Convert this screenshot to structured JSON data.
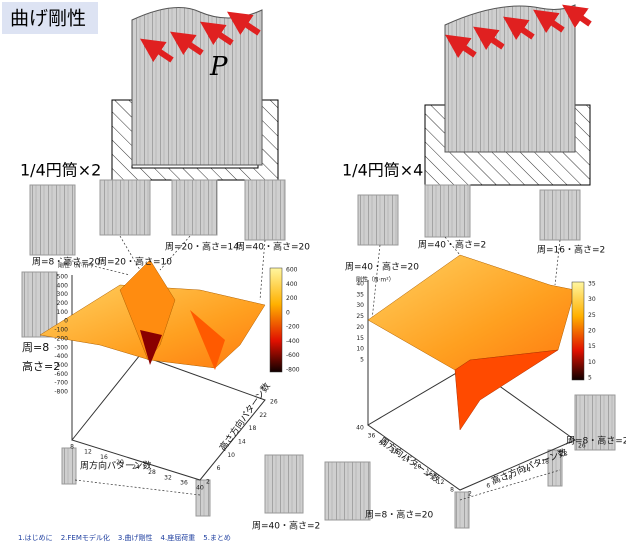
{
  "header": {
    "title": "曲げ剛性"
  },
  "left": {
    "label": "1/4円筒×2",
    "load": "P",
    "notes": [
      "周=8・高さ=20",
      "周=20・高さ=10",
      "周=20・高さ=14",
      "周=40・高さ=20",
      "周=8",
      "高さ=2",
      "周=40・高さ=2"
    ],
    "z_label": "剛性（N·m²）",
    "z_ticks": [
      500,
      400,
      300,
      200,
      100,
      0,
      -100,
      -200,
      -300,
      -400,
      -500,
      -600,
      -700,
      -800
    ],
    "colorbar_ticks": [
      600,
      400,
      200,
      0,
      -200,
      -400,
      -600,
      -800
    ],
    "x_label": "周方向パターン数",
    "x_ticks": [
      8,
      12,
      16,
      20,
      24,
      28,
      32,
      36,
      40
    ],
    "y_label": "高さ方向パターン数",
    "y_ticks": [
      2,
      6,
      10,
      14,
      18,
      22,
      26
    ]
  },
  "right": {
    "label": "1/4円筒×4",
    "notes": [
      "周=40・高さ=20",
      "周=40・高さ=2",
      "周=16・高さ=2",
      "周=8・高さ=2",
      "周=8・高さ=20"
    ],
    "z_label": "剛性（N·m²）",
    "z_ticks": [
      40,
      35,
      30,
      25,
      20,
      15,
      10,
      5
    ],
    "colorbar_ticks": [
      35,
      30,
      25,
      20,
      15,
      10,
      5
    ],
    "x_label": "周方向パターン数",
    "x_ticks": [
      40,
      36,
      32,
      28,
      24,
      20,
      16,
      12,
      8
    ],
    "y_label": "高さ方向パターン数",
    "y_ticks": [
      2,
      6,
      10,
      14,
      18,
      22,
      26
    ]
  },
  "footer": {
    "nav": [
      "1.はじめに",
      "2.FEMモデル化",
      "3.曲げ剛性",
      "4.座屈荷重",
      "5.まとめ"
    ]
  }
}
